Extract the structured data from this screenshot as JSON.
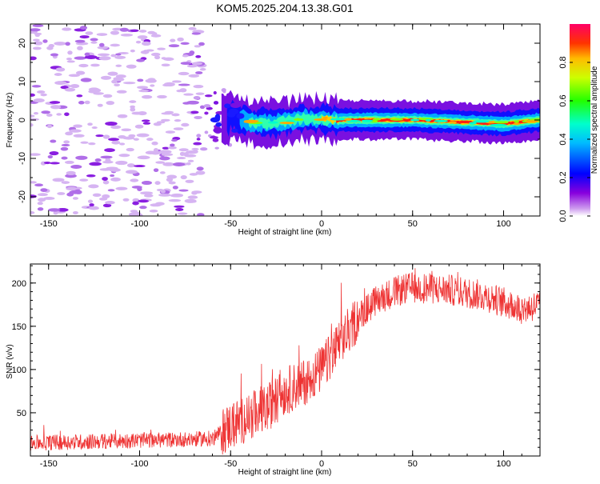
{
  "title": "KOM5.2025.204.13.38.G01",
  "chart_data": [
    {
      "type": "heatmap",
      "xlabel": "Height of straight line (km)",
      "ylabel": "Frequency (Hz)",
      "xlim": [
        -160,
        120
      ],
      "ylim": [
        -25,
        25
      ],
      "xticks": [
        -150,
        -100,
        -50,
        0,
        50,
        100
      ],
      "yticks": [
        -20,
        -10,
        0,
        10,
        20
      ],
      "colorbar": {
        "label": "Normalized spectral amplitude",
        "ticks": [
          "0.0",
          "0.2",
          "0.4",
          "0.6",
          "0.8"
        ],
        "range": [
          0,
          1
        ]
      },
      "ridge": {
        "description_values": "signal centered near 0 Hz from about -50 km to 120 km",
        "points": [
          {
            "x": -50,
            "y": 1.5
          },
          {
            "x": -40,
            "y": -0.5
          },
          {
            "x": -30,
            "y": -1.0
          },
          {
            "x": -20,
            "y": -0.5
          },
          {
            "x": -10,
            "y": 0.5
          },
          {
            "x": 0,
            "y": 0.2
          },
          {
            "x": 10,
            "y": 0.0
          },
          {
            "x": 50,
            "y": 0.0
          },
          {
            "x": 100,
            "y": -1.0
          },
          {
            "x": 120,
            "y": 0.0
          }
        ]
      }
    },
    {
      "type": "line",
      "xlabel": "Height of straight line (km)",
      "ylabel": "SNR (v/v)",
      "xlim": [
        -160,
        120
      ],
      "ylim": [
        0,
        222
      ],
      "xticks": [
        -150,
        -100,
        -50,
        0,
        50,
        100
      ],
      "yticks": [
        50,
        100,
        150,
        200
      ],
      "color": "#ee3333",
      "trend": [
        {
          "x": -160,
          "y": 15
        },
        {
          "x": -100,
          "y": 18
        },
        {
          "x": -60,
          "y": 20
        },
        {
          "x": -50,
          "y": 35
        },
        {
          "x": -40,
          "y": 45
        },
        {
          "x": -30,
          "y": 55
        },
        {
          "x": -20,
          "y": 75
        },
        {
          "x": -10,
          "y": 85
        },
        {
          "x": 0,
          "y": 100
        },
        {
          "x": 10,
          "y": 130
        },
        {
          "x": 20,
          "y": 160
        },
        {
          "x": 30,
          "y": 180
        },
        {
          "x": 40,
          "y": 190
        },
        {
          "x": 50,
          "y": 195
        },
        {
          "x": 70,
          "y": 192
        },
        {
          "x": 90,
          "y": 185
        },
        {
          "x": 110,
          "y": 170
        },
        {
          "x": 120,
          "y": 175
        }
      ]
    }
  ]
}
